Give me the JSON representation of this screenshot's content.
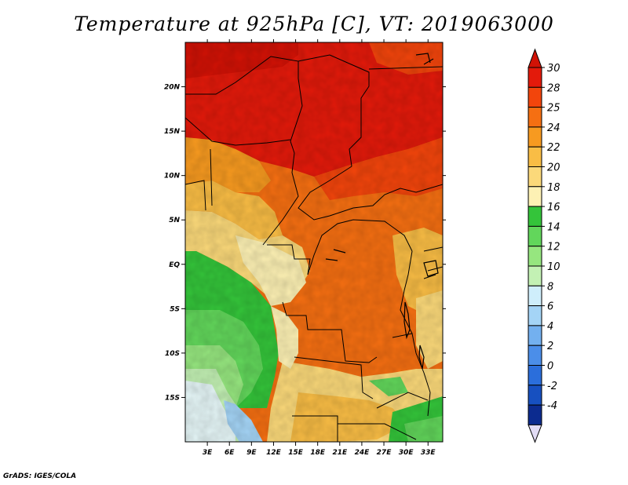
{
  "title": "Temperature at 925hPa [C], VT: 2019063000",
  "credit": "GrADS: IGES/COLA",
  "map": {
    "lat_labels": [
      "20N",
      "15N",
      "10N",
      "5N",
      "EQ",
      "5S",
      "10S",
      "15S"
    ],
    "lon_labels": [
      "3E",
      "6E",
      "9E",
      "12E",
      "15E",
      "18E",
      "21E",
      "24E",
      "27E",
      "30E",
      "33E"
    ],
    "lat_values": [
      20,
      15,
      10,
      5,
      0,
      -5,
      -10,
      -15
    ],
    "lon_values": [
      3,
      6,
      9,
      12,
      15,
      18,
      21,
      24,
      27,
      30,
      33
    ],
    "extent": {
      "lon_min": 0,
      "lon_max": 35,
      "lat_min": -20,
      "lat_max": 25
    }
  },
  "colorbar": {
    "labels": [
      "30",
      "28",
      "25",
      "24",
      "22",
      "20",
      "18",
      "16",
      "14",
      "12",
      "10",
      "8",
      "6",
      "4",
      "2",
      "0",
      "-2",
      "-4"
    ],
    "colors": [
      "#e31a0b",
      "#f2450c",
      "#f56f12",
      "#f79a20",
      "#f9bd45",
      "#fbd97a",
      "#fdf1b4",
      "#34c43a",
      "#62d65b",
      "#96e67f",
      "#c3f1b4",
      "#cfeefb",
      "#a4d4f6",
      "#73b0ef",
      "#4b8ee9",
      "#2b6edb",
      "#1750c0",
      "#0c2b8f"
    ],
    "over_color": "#d11206",
    "under_color": "#e2dcf5"
  }
}
